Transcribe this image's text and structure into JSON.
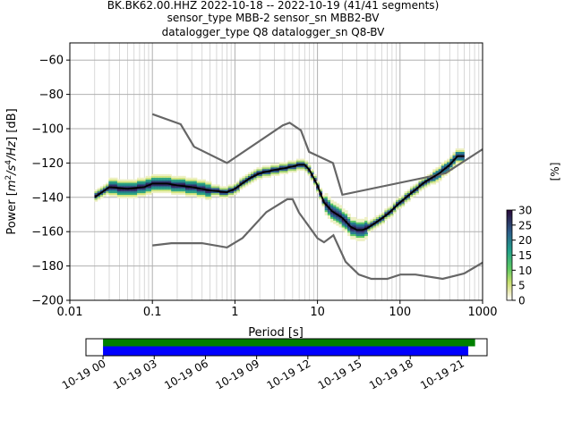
{
  "chart_data": {
    "type": "heatmap",
    "title": [
      "BK.BK62.00.HHZ   2022-10-18 -- 2022-10-19  (41/41 segments)",
      "sensor_type MBB-2 sensor_sn MBB2-BV",
      "datalogger_type Q8 datalogger_sn Q8-BV"
    ],
    "xlabel": "Period [s]",
    "ylabel": "Power [$m^2/s^4/Hz$] [dB]",
    "ylabel_parts": {
      "prefix": "Power [",
      "m": "m",
      "exp2": "2",
      "slash1": "/s",
      "exp4": "4",
      "slash2": "/Hz",
      "suffix": "] [dB]"
    },
    "x_scale": "log",
    "xlim": [
      0.01,
      1000
    ],
    "ylim": [
      -200,
      -50
    ],
    "x_ticks": [
      0.01,
      0.1,
      1,
      10,
      100,
      1000
    ],
    "x_tick_labels": [
      "0.01",
      "0.1",
      "1",
      "10",
      "100",
      "1000"
    ],
    "y_ticks": [
      -200,
      -180,
      -160,
      -140,
      -120,
      -100,
      -80,
      -60
    ],
    "y_tick_labels": [
      "−200",
      "−180",
      "−160",
      "−140",
      "−120",
      "−100",
      "−80",
      "−60"
    ],
    "grid": true,
    "colorbar": {
      "label": "[%]",
      "range": [
        0,
        30
      ],
      "ticks": [
        0,
        5,
        10,
        15,
        20,
        25,
        30
      ],
      "tick_labels": [
        "0",
        "5",
        "10",
        "15",
        "20",
        "25",
        "30"
      ],
      "colormap": "pqlx"
    },
    "mean_curve": {
      "period": [
        0.02,
        0.03,
        0.05,
        0.08,
        0.1,
        0.15,
        0.2,
        0.3,
        0.5,
        0.8,
        1.0,
        1.5,
        2.0,
        3.0,
        4.0,
        5.0,
        6.0,
        7.0,
        8.0,
        10.0,
        12.0,
        15.0,
        20.0,
        25.0,
        30.0,
        35.0,
        40.0,
        50.0,
        70.0,
        100.0,
        150.0,
        200.0,
        300.0,
        400.0,
        500.0,
        600.0
      ],
      "power": [
        -140,
        -134,
        -135,
        -134,
        -132,
        -132,
        -133,
        -134,
        -136,
        -137,
        -135,
        -129,
        -126,
        -124,
        -123,
        -122,
        -121,
        -121,
        -124,
        -133,
        -143,
        -148,
        -152,
        -157,
        -159,
        -159,
        -158,
        -155,
        -150,
        -143,
        -136,
        -131,
        -126,
        -121,
        -116,
        -116
      ]
    },
    "nhnm": {
      "period": [
        0.1,
        0.22,
        0.32,
        0.8,
        3.8,
        4.6,
        6.3,
        7.9,
        15.4,
        20.0,
        354.8,
        1000
      ],
      "power": [
        -91.5,
        -97.4,
        -110.5,
        -120.0,
        -98.0,
        -96.5,
        -101.0,
        -113.5,
        -120.0,
        -138.5,
        -126.0,
        -112.0
      ]
    },
    "nlnm": {
      "period": [
        0.1,
        0.17,
        0.4,
        0.8,
        1.24,
        2.4,
        4.3,
        5.0,
        6.0,
        10.0,
        12.0,
        15.6,
        21.9,
        31.6,
        45.0,
        70.0,
        101.0,
        154.0,
        328.0,
        600.0,
        1000.0
      ],
      "power": [
        -168.0,
        -166.7,
        -166.7,
        -169.2,
        -163.7,
        -148.6,
        -141.1,
        -141.1,
        -149.0,
        -163.8,
        -166.2,
        -162.1,
        -177.5,
        -185.0,
        -187.5,
        -187.5,
        -185.0,
        -185.0,
        -187.5,
        -184.4,
        -178.0
      ]
    }
  },
  "data_availability": {
    "type": "timeline",
    "x_tick_labels": [
      "10-19 00",
      "10-19 03",
      "10-19 06",
      "10-19 09",
      "10-19 12",
      "10-19 15",
      "10-19 18",
      "10-19 21"
    ],
    "x_ticks_hours": [
      0,
      3,
      6,
      9,
      12,
      15,
      18,
      21
    ],
    "xlim_hours": [
      -1,
      22.5
    ],
    "data_span_hours": [
      0,
      21.8
    ],
    "processed_span_hours": [
      0,
      21.4
    ],
    "colors": {
      "data": "#008000",
      "processed": "#0000ff"
    }
  }
}
